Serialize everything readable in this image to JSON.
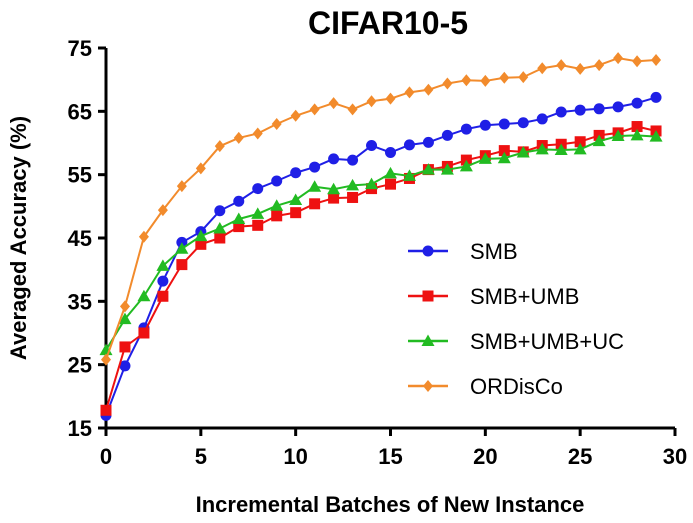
{
  "chart_data": {
    "type": "line",
    "title": "CIFAR10-5",
    "xlabel": "Incremental Batches of New Instance",
    "ylabel": "Averaged Accuracy (%)",
    "xlim": [
      0,
      30
    ],
    "ylim": [
      15,
      75
    ],
    "xticks": [
      0,
      5,
      10,
      15,
      20,
      25,
      30
    ],
    "yticks": [
      15,
      25,
      35,
      45,
      55,
      65,
      75
    ],
    "grid": false,
    "legend_position": "center-right",
    "x": [
      0,
      1,
      2,
      3,
      4,
      5,
      6,
      7,
      8,
      9,
      10,
      11,
      12,
      13,
      14,
      15,
      16,
      17,
      18,
      19,
      20,
      21,
      22,
      23,
      24,
      25,
      26,
      27,
      28,
      29
    ],
    "series": [
      {
        "name": "SMB",
        "color": "#1f1fe6",
        "marker": "circle",
        "values": [
          17.0,
          24.8,
          30.8,
          38.2,
          44.3,
          46.0,
          49.3,
          50.8,
          52.8,
          54.0,
          55.3,
          56.2,
          57.5,
          57.3,
          59.6,
          58.5,
          59.7,
          60.1,
          61.2,
          62.2,
          62.8,
          63.0,
          63.2,
          63.8,
          64.9,
          65.2,
          65.4,
          65.7,
          66.3,
          67.2
        ]
      },
      {
        "name": "SMB+UMB",
        "color": "#ee1111",
        "marker": "square",
        "values": [
          17.8,
          27.8,
          30.0,
          35.8,
          40.8,
          44.0,
          45.0,
          46.8,
          47.0,
          48.5,
          49.0,
          50.4,
          51.3,
          51.4,
          52.8,
          53.5,
          54.4,
          55.8,
          56.3,
          57.3,
          58.0,
          58.8,
          58.6,
          59.6,
          59.8,
          60.2,
          61.2,
          61.6,
          62.6,
          61.9
        ]
      },
      {
        "name": "SMB+UMB+UC",
        "color": "#22bb22",
        "marker": "triangle",
        "values": [
          27.3,
          32.2,
          35.8,
          40.6,
          43.3,
          45.3,
          46.5,
          48.0,
          48.8,
          50.1,
          51.0,
          53.1,
          52.7,
          53.3,
          53.5,
          55.2,
          54.8,
          55.8,
          55.8,
          56.3,
          57.5,
          57.6,
          58.5,
          59.0,
          58.9,
          59.0,
          60.3,
          61.1,
          61.2,
          61.0
        ]
      },
      {
        "name": "ORDisCo",
        "color": "#f28b2c",
        "marker": "diamond",
        "values": [
          25.8,
          34.2,
          45.2,
          49.4,
          53.2,
          56.0,
          59.5,
          60.8,
          61.5,
          63.0,
          64.3,
          65.3,
          66.3,
          65.3,
          66.6,
          67.0,
          68.0,
          68.4,
          69.4,
          69.9,
          69.8,
          70.3,
          70.4,
          71.8,
          72.3,
          71.7,
          72.3,
          73.4,
          72.9,
          73.1
        ]
      }
    ]
  }
}
